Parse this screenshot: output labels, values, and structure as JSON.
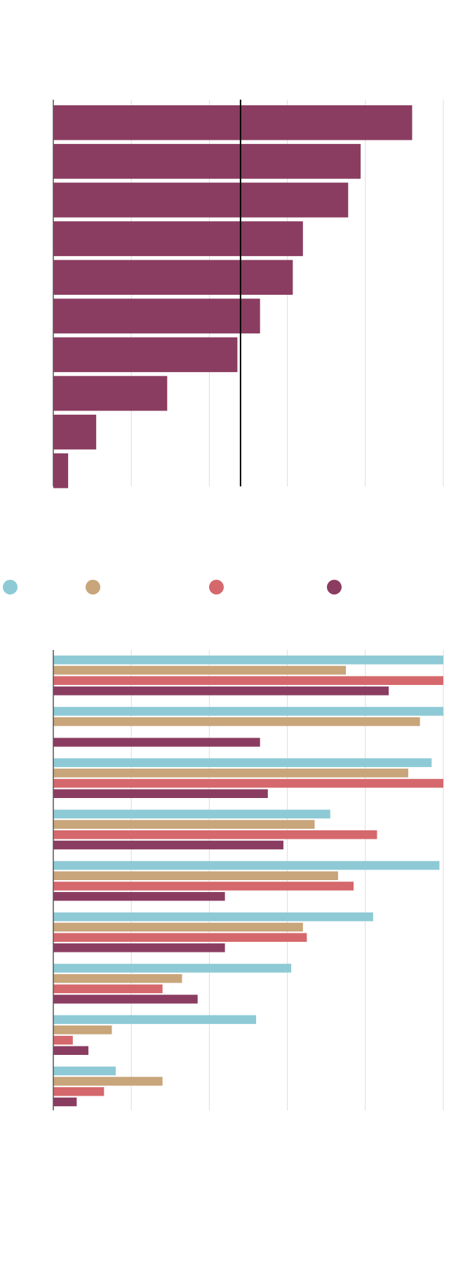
{
  "colors": {
    "grid": "#dcdcdc",
    "axis": "#555555",
    "reference": "#000000"
  },
  "chart_data": [
    {
      "type": "bar",
      "orientation": "horizontal",
      "categories": [
        "",
        "",
        "",
        "",
        "",
        "",
        "",
        "",
        "",
        ""
      ],
      "values": [
        46,
        39.4,
        37.8,
        32,
        30.7,
        26.5,
        23.6,
        14.6,
        5.5,
        1.9
      ],
      "xlim": [
        0,
        50
      ],
      "grid": true,
      "reference_line": 24,
      "bar_color": "#8b3d61",
      "title": "",
      "xlabel": "",
      "ylabel": ""
    },
    {
      "type": "bar",
      "orientation": "horizontal",
      "legend": {
        "placement": "top-left",
        "entries": [
          {
            "label": "",
            "color": "#8ecad5"
          },
          {
            "label": "",
            "color": "#c8a57a"
          },
          {
            "label": "",
            "color": "#d5686c"
          },
          {
            "label": "",
            "color": "#8b3d61"
          }
        ]
      },
      "categories": [
        "",
        "",
        "",
        "",
        "",
        "",
        "",
        "",
        ""
      ],
      "series": [
        {
          "color": "#8ecad5",
          "values": [
            50,
            50,
            48.5,
            35.5,
            49.5,
            41,
            30.5,
            26,
            8
          ]
        },
        {
          "color": "#c8a57a",
          "values": [
            37.5,
            47,
            45.5,
            33.5,
            36.5,
            32,
            16.5,
            7.5,
            14
          ]
        },
        {
          "color": "#d5686c",
          "values": [
            50,
            null,
            50,
            41.5,
            38.5,
            32.5,
            14,
            2.5,
            6.5
          ]
        },
        {
          "color": "#8b3d61",
          "values": [
            43,
            26.5,
            27.5,
            29.5,
            22,
            22,
            18.5,
            4.5,
            3
          ]
        }
      ],
      "xlim": [
        0,
        50
      ],
      "grid": true,
      "title": "",
      "xlabel": "",
      "ylabel": ""
    }
  ]
}
